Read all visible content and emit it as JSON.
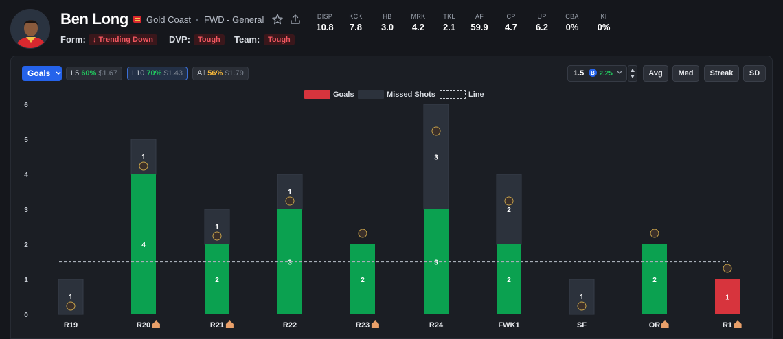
{
  "player": {
    "name": "Ben Long",
    "team": "Gold Coast",
    "position": "FWD - General",
    "form_label": "Form:",
    "form_value": "↓ Trending Down",
    "dvp_label": "DVP:",
    "dvp_value": "Tough",
    "team_label": "Team:",
    "team_value": "Tough"
  },
  "stats": [
    {
      "label": "DISP",
      "value": "10.8"
    },
    {
      "label": "KCK",
      "value": "7.8"
    },
    {
      "label": "HB",
      "value": "3.0"
    },
    {
      "label": "MRK",
      "value": "4.2"
    },
    {
      "label": "TKL",
      "value": "2.1"
    },
    {
      "label": "AF",
      "value": "59.9"
    },
    {
      "label": "CP",
      "value": "4.7"
    },
    {
      "label": "UP",
      "value": "6.2"
    },
    {
      "label": "CBA",
      "value": "0%"
    },
    {
      "label": "KI",
      "value": "0%"
    }
  ],
  "toolbar": {
    "stat_select": "Goals",
    "ranges": [
      {
        "prefix": "L5",
        "pct": "60%",
        "odds": "$1.67",
        "tone": "g"
      },
      {
        "prefix": "L10",
        "pct": "70%",
        "odds": "$1.43",
        "tone": "g"
      },
      {
        "prefix": "All",
        "pct": "56%",
        "odds": "$1.79",
        "tone": "y"
      }
    ],
    "line_value": "1.5",
    "line_odds": "2.25",
    "buttons": [
      "Avg",
      "Med",
      "Streak",
      "SD"
    ]
  },
  "colors": {
    "hit": "#0ba150",
    "miss": "#d7343d",
    "missed_shots": "#2c323c",
    "accent": "#2563eb"
  },
  "chart_data": {
    "type": "bar",
    "legend": [
      "Goals",
      "Missed Shots",
      "Line"
    ],
    "categories": [
      "R19",
      "R20",
      "R21",
      "R22",
      "R23",
      "R24",
      "FWK1",
      "SF",
      "OR",
      "R1"
    ],
    "home": [
      false,
      true,
      true,
      false,
      true,
      false,
      false,
      false,
      true,
      true
    ],
    "opponent_icons": [
      "essendon-icon",
      "brisbane-icon",
      "richmond-icon",
      "carlton-icon",
      "gws-icon",
      "port-adelaide-icon",
      "fremantle-icon",
      "brisbane-icon",
      "geelong-icon",
      "west-coast-icon"
    ],
    "series": [
      {
        "name": "Goals",
        "values": [
          0,
          4,
          2,
          3,
          2,
          3,
          2,
          0,
          2,
          1
        ]
      },
      {
        "name": "Missed Shots",
        "values": [
          1,
          1,
          1,
          1,
          0,
          3,
          2,
          1,
          0,
          0
        ]
      }
    ],
    "line": 1.5,
    "ylim": [
      0,
      6
    ],
    "yticks": [
      0,
      1,
      2,
      3,
      4,
      5,
      6
    ],
    "legend_placement": "top-center"
  }
}
